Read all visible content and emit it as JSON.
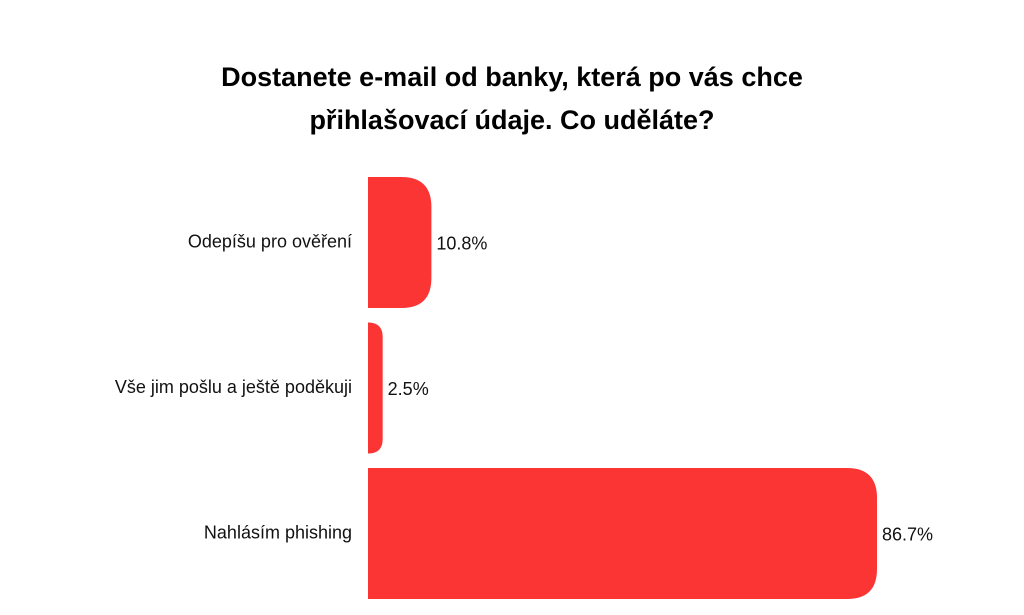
{
  "chart_data": {
    "type": "bar",
    "orientation": "horizontal",
    "title": "Dostanete e-mail od banky, která po vás chce přihlašovací údaje. Co uděláte?",
    "categories": [
      "Odepíšu pro ověření",
      "Vše jim pošlu a ještě poděkuji",
      "Nahlásím phishing"
    ],
    "values": [
      10.8,
      2.5,
      86.7
    ],
    "value_labels": [
      "10.8%",
      "2.5%",
      "86.7%"
    ],
    "color": "#fb3434"
  }
}
